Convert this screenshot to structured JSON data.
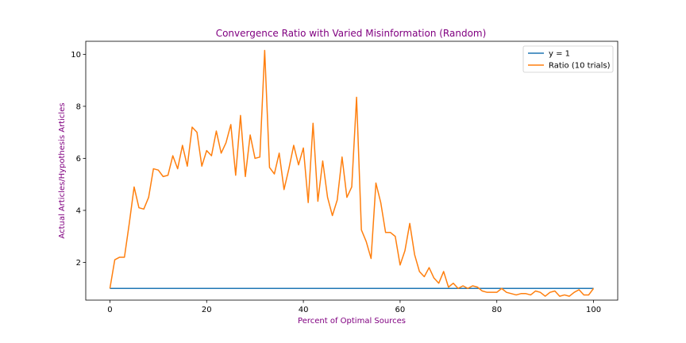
{
  "chart_data": {
    "type": "line",
    "title": "Convergence Ratio with Varied Misinformation (Random)",
    "xlabel": "Percent of Optimal Sources",
    "ylabel": "Actual Articles/Hypothesis Articles",
    "xlim": [
      -5,
      105
    ],
    "ylim": [
      0.55,
      10.5
    ],
    "x_ticks": [
      0,
      20,
      40,
      60,
      80,
      100
    ],
    "y_ticks": [
      2,
      4,
      6,
      8,
      10
    ],
    "grid": false,
    "legend_position": "top-right",
    "label_color": "#800080",
    "series": [
      {
        "name": "y = 1",
        "color": "#1f77b4",
        "x": [
          0,
          100
        ],
        "y": [
          1.0,
          1.0
        ]
      },
      {
        "name": "Ratio (10 trials)",
        "color": "#ff7f0e",
        "x": [
          0,
          1,
          2,
          3,
          4,
          5,
          6,
          7,
          8,
          9,
          10,
          11,
          12,
          13,
          14,
          15,
          16,
          17,
          18,
          19,
          20,
          21,
          22,
          23,
          24,
          25,
          26,
          27,
          28,
          29,
          30,
          31,
          32,
          33,
          34,
          35,
          36,
          37,
          38,
          39,
          40,
          41,
          42,
          43,
          44,
          45,
          46,
          47,
          48,
          49,
          50,
          51,
          52,
          53,
          54,
          55,
          56,
          57,
          58,
          59,
          60,
          61,
          62,
          63,
          64,
          65,
          66,
          67,
          68,
          69,
          70,
          71,
          72,
          73,
          74,
          75,
          76,
          77,
          78,
          79,
          80,
          81,
          82,
          83,
          84,
          85,
          86,
          87,
          88,
          89,
          90,
          91,
          92,
          93,
          94,
          95,
          96,
          97,
          98,
          99,
          100
        ],
        "y": [
          1.0,
          2.1,
          2.2,
          2.2,
          3.5,
          4.9,
          4.1,
          4.05,
          4.5,
          5.6,
          5.55,
          5.3,
          5.35,
          6.1,
          5.6,
          6.5,
          5.7,
          7.2,
          7.0,
          5.7,
          6.3,
          6.1,
          7.05,
          6.2,
          6.6,
          7.3,
          5.35,
          7.65,
          5.3,
          6.9,
          6.0,
          6.05,
          10.15,
          5.65,
          5.4,
          6.2,
          4.8,
          5.6,
          6.5,
          5.75,
          6.4,
          4.3,
          7.35,
          4.35,
          5.9,
          4.5,
          3.8,
          4.4,
          6.05,
          4.5,
          4.9,
          8.35,
          3.25,
          2.8,
          2.15,
          5.05,
          4.3,
          3.15,
          3.15,
          3.0,
          1.9,
          2.45,
          3.5,
          2.3,
          1.65,
          1.45,
          1.8,
          1.4,
          1.2,
          1.65,
          1.05,
          1.2,
          1.0,
          1.1,
          1.0,
          1.1,
          1.05,
          0.9,
          0.85,
          0.85,
          0.85,
          1.0,
          0.85,
          0.8,
          0.75,
          0.8,
          0.8,
          0.75,
          0.9,
          0.85,
          0.7,
          0.85,
          0.9,
          0.7,
          0.75,
          0.7,
          0.85,
          0.95,
          0.75,
          0.75,
          1.0
        ]
      }
    ]
  }
}
